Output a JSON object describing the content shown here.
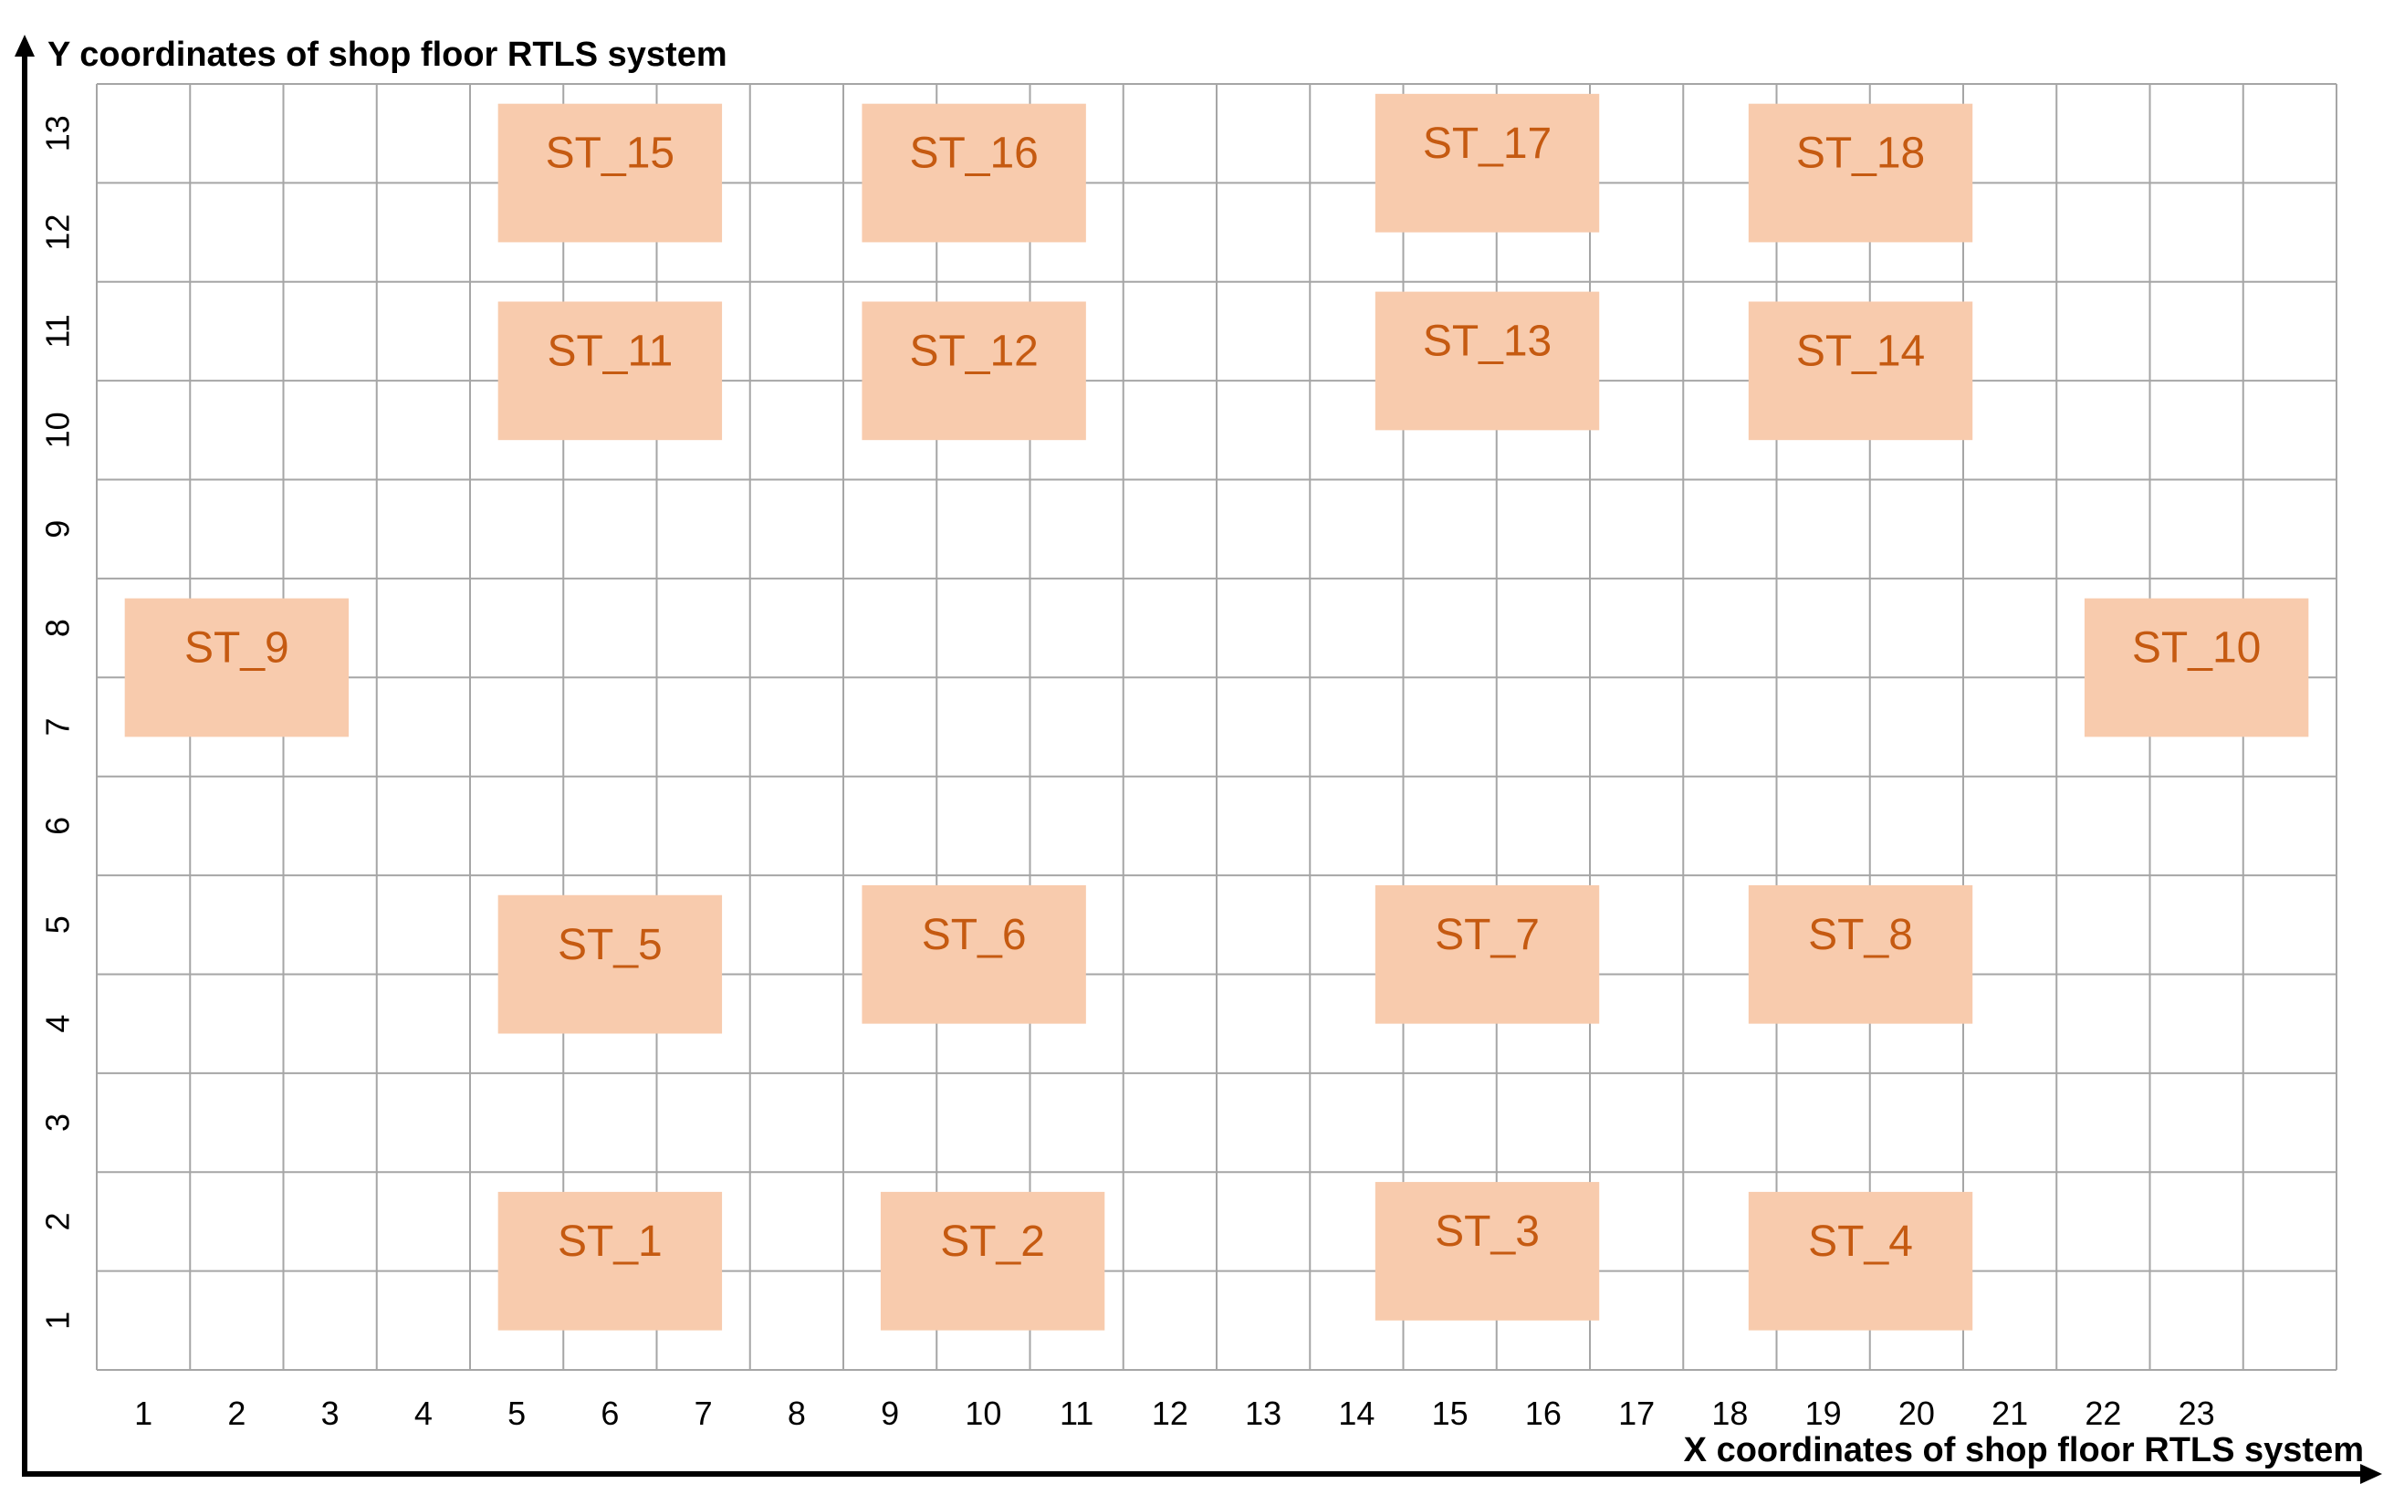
{
  "titles": {
    "y_axis": "Y coordinates of shop floor RTLS system",
    "x_axis": "X coordinates of shop floor RTLS system"
  },
  "x_ticks": [
    "1",
    "2",
    "3",
    "4",
    "5",
    "6",
    "7",
    "8",
    "9",
    "10",
    "11",
    "12",
    "13",
    "14",
    "15",
    "16",
    "17",
    "18",
    "19",
    "20",
    "21",
    "22",
    "23"
  ],
  "y_ticks": [
    "1",
    "2",
    "3",
    "4",
    "5",
    "6",
    "7",
    "8",
    "9",
    "10",
    "11",
    "12",
    "13"
  ],
  "colors": {
    "station_fill": "#F8CBAD",
    "station_text": "#C55A11",
    "grid": "#A6A6A6",
    "axis": "#000000"
  },
  "stations": [
    {
      "label": "ST_1",
      "x": [
        4.3,
        6.7
      ],
      "y": [
        0.4,
        1.8
      ]
    },
    {
      "label": "ST_2",
      "x": [
        8.4,
        10.8
      ],
      "y": [
        0.4,
        1.8
      ]
    },
    {
      "label": "ST_3",
      "x": [
        13.7,
        16.1
      ],
      "y": [
        0.5,
        1.9
      ]
    },
    {
      "label": "ST_4",
      "x": [
        17.7,
        20.1
      ],
      "y": [
        0.4,
        1.8
      ]
    },
    {
      "label": "ST_5",
      "x": [
        4.3,
        6.7
      ],
      "y": [
        3.4,
        4.8
      ]
    },
    {
      "label": "ST_6",
      "x": [
        8.2,
        10.6
      ],
      "y": [
        3.5,
        4.9
      ]
    },
    {
      "label": "ST_7",
      "x": [
        13.7,
        16.1
      ],
      "y": [
        3.5,
        4.9
      ]
    },
    {
      "label": "ST_8",
      "x": [
        17.7,
        20.1
      ],
      "y": [
        3.5,
        4.9
      ]
    },
    {
      "label": "ST_9",
      "x": [
        0.3,
        2.7
      ],
      "y": [
        6.4,
        7.8
      ]
    },
    {
      "label": "ST_10",
      "x": [
        21.3,
        23.7
      ],
      "y": [
        6.4,
        7.8
      ]
    },
    {
      "label": "ST_11",
      "x": [
        4.3,
        6.7
      ],
      "y": [
        9.4,
        10.8
      ]
    },
    {
      "label": "ST_12",
      "x": [
        8.2,
        10.6
      ],
      "y": [
        9.4,
        10.8
      ]
    },
    {
      "label": "ST_13",
      "x": [
        13.7,
        16.1
      ],
      "y": [
        9.5,
        10.9
      ]
    },
    {
      "label": "ST_14",
      "x": [
        17.7,
        20.1
      ],
      "y": [
        9.4,
        10.8
      ]
    },
    {
      "label": "ST_15",
      "x": [
        4.3,
        6.7
      ],
      "y": [
        11.4,
        12.8
      ]
    },
    {
      "label": "ST_16",
      "x": [
        8.2,
        10.6
      ],
      "y": [
        11.4,
        12.8
      ]
    },
    {
      "label": "ST_17",
      "x": [
        13.7,
        16.1
      ],
      "y": [
        11.5,
        12.9
      ]
    },
    {
      "label": "ST_18",
      "x": [
        17.7,
        20.1
      ],
      "y": [
        11.4,
        12.8
      ]
    }
  ]
}
